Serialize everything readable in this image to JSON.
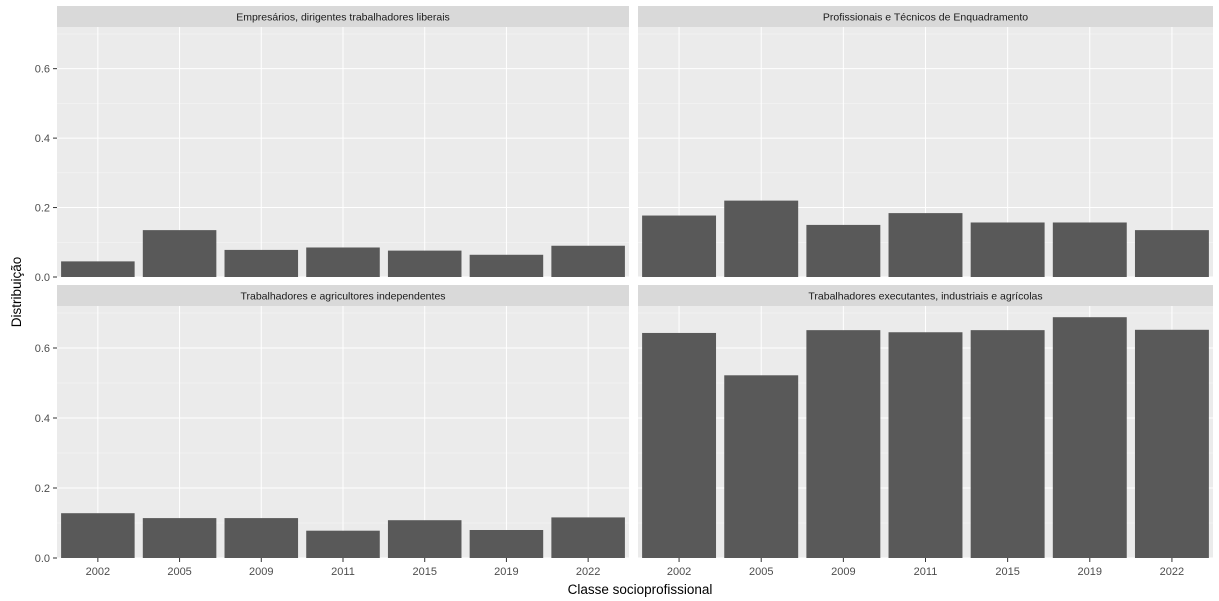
{
  "chart_data": {
    "type": "bar",
    "categories": [
      "2002",
      "2005",
      "2009",
      "2011",
      "2015",
      "2019",
      "2022"
    ],
    "xlabel": "Classe socioprofissional",
    "ylabel": "Distribuição",
    "ylim": [
      0,
      0.72
    ],
    "yticks": [
      0.0,
      0.2,
      0.4,
      0.6
    ],
    "ytick_labels": [
      "0.0",
      "0.2",
      "0.4",
      "0.6"
    ],
    "grid": true,
    "facets": [
      {
        "title": "Empresários, dirigentes  trabalhadores liberais",
        "values": [
          0.045,
          0.135,
          0.078,
          0.085,
          0.076,
          0.064,
          0.09
        ]
      },
      {
        "title": "Profissionais e Técnicos de Enquadramento",
        "values": [
          0.177,
          0.22,
          0.15,
          0.184,
          0.157,
          0.157,
          0.135
        ]
      },
      {
        "title": "Trabalhadores e agricultores independentes",
        "values": [
          0.128,
          0.114,
          0.114,
          0.078,
          0.108,
          0.08,
          0.116
        ]
      },
      {
        "title": "Trabalhadores executantes, industriais e agrícolas",
        "values": [
          0.643,
          0.522,
          0.651,
          0.645,
          0.651,
          0.688,
          0.652
        ]
      }
    ]
  },
  "colors": {
    "bar": "#595959",
    "panel_background": "#ebebeb",
    "strip_background": "#d9d9d9",
    "grid_major": "#ffffff"
  }
}
